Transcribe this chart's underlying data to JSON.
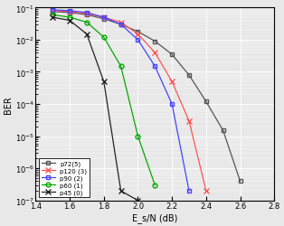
{
  "title": "",
  "xlabel": "E_s/N (dB)",
  "ylabel": "BER",
  "xlim": [
    1.4,
    2.8
  ],
  "ylim_log": [
    -7,
    -1
  ],
  "bg_color": "#e8e8e8",
  "grid_color": "#ffffff",
  "series": [
    {
      "label": "p72(5)",
      "color": "#555555",
      "marker": "s",
      "markersize": 3.5,
      "x": [
        1.5,
        1.6,
        1.7,
        1.8,
        1.9,
        2.0,
        2.1,
        2.2,
        2.3,
        2.4,
        2.5,
        2.6
      ],
      "y": [
        0.075,
        0.07,
        0.06,
        0.045,
        0.03,
        0.018,
        0.009,
        0.0035,
        0.0008,
        0.00012,
        1.5e-05,
        4e-07
      ],
      "open_marker": true
    },
    {
      "label": "p120 (3)",
      "color": "#ff5555",
      "marker": "x",
      "markersize": 4,
      "x": [
        1.5,
        1.6,
        1.7,
        1.8,
        1.9,
        2.0,
        2.1,
        2.2,
        2.3,
        2.4
      ],
      "y": [
        0.08,
        0.075,
        0.065,
        0.05,
        0.035,
        0.015,
        0.004,
        0.0005,
        3e-05,
        2e-07
      ],
      "open_marker": false
    },
    {
      "label": "p90 (2)",
      "color": "#4444ff",
      "marker": "s",
      "markersize": 3.5,
      "x": [
        1.5,
        1.6,
        1.7,
        1.8,
        1.9,
        2.0,
        2.1,
        2.2,
        2.3
      ],
      "y": [
        0.085,
        0.08,
        0.07,
        0.05,
        0.03,
        0.01,
        0.0015,
        0.0001,
        2e-07
      ],
      "open_marker": true
    },
    {
      "label": "p60 (1)",
      "color": "#00aa00",
      "marker": "o",
      "markersize": 3.5,
      "x": [
        1.5,
        1.6,
        1.7,
        1.8,
        1.9,
        2.0,
        2.1
      ],
      "y": [
        0.06,
        0.05,
        0.035,
        0.012,
        0.0015,
        1e-05,
        3e-07
      ],
      "open_marker": true
    },
    {
      "label": "p45 (0)",
      "color": "#222222",
      "marker": "x",
      "markersize": 4,
      "x": [
        1.5,
        1.6,
        1.7,
        1.8,
        1.9,
        2.0
      ],
      "y": [
        0.05,
        0.04,
        0.015,
        0.0005,
        2e-07,
        1e-07
      ],
      "open_marker": false
    }
  ]
}
